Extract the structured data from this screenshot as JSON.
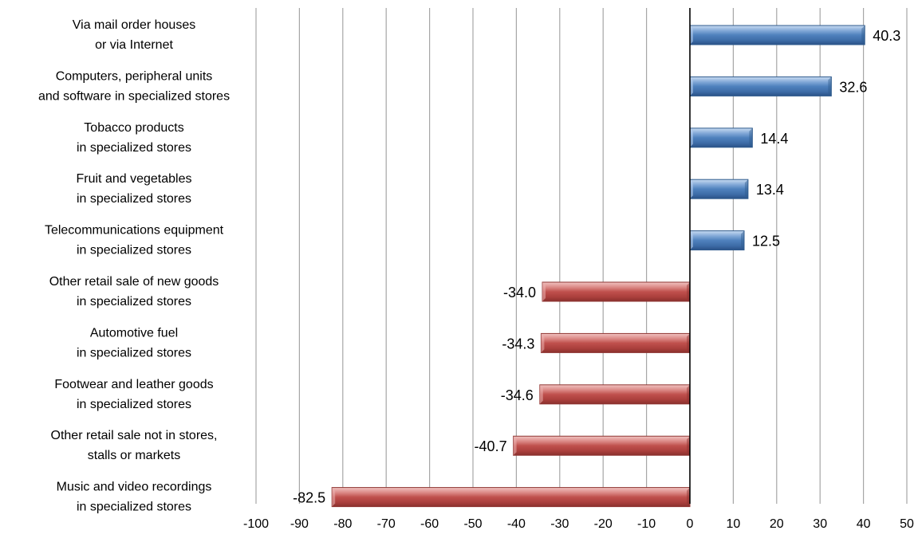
{
  "chart_data": {
    "type": "bar",
    "orientation": "horizontal",
    "categories": [
      [
        "Via mail order houses",
        "or via Internet"
      ],
      [
        "Computers, peripheral units",
        "and software in specialized stores"
      ],
      [
        "Tobacco products",
        "in specialized stores"
      ],
      [
        "Fruit and vegetables",
        "in specialized stores"
      ],
      [
        "Telecommunications equipment",
        "in specialized stores"
      ],
      [
        "Other retail sale of new goods",
        "in specialized stores"
      ],
      [
        "Automotive fuel",
        "in specialized stores"
      ],
      [
        "Footwear and leather goods",
        "in specialized stores"
      ],
      [
        "Other retail sale not in stores,",
        "stalls or markets"
      ],
      [
        "Music and video recordings",
        "in specialized stores"
      ]
    ],
    "values": [
      40.3,
      32.6,
      14.4,
      13.4,
      12.5,
      -34.0,
      -34.3,
      -34.6,
      -40.7,
      -82.5
    ],
    "value_labels": [
      "40.3",
      "32.6",
      "14.4",
      "13.4",
      "12.5",
      "-34.0",
      "-34.3",
      "-34.6",
      "-40.7",
      "-82.5"
    ],
    "xlim": [
      -100,
      50
    ],
    "xticks": [
      -100,
      -90,
      -80,
      -70,
      -60,
      -50,
      -40,
      -30,
      -20,
      -10,
      0,
      10,
      20,
      30,
      40,
      50
    ],
    "xtick_labels": [
      "-100",
      "-90",
      "-80",
      "-70",
      "-60",
      "-50",
      "-40",
      "-30",
      "-20",
      "-10",
      "0",
      "10",
      "20",
      "30",
      "40",
      "50"
    ],
    "grid": "vertical",
    "legend": "none",
    "title": "",
    "xlabel": "",
    "ylabel": "",
    "colors": {
      "positive": "#4F81BD",
      "positive_light": "#B8D0EE",
      "positive_dark": "#2E5A8C",
      "negative": "#C0504D",
      "negative_light": "#EBB3B1",
      "negative_dark": "#8E3431",
      "grid": "#A6A6A6",
      "zero_axis": "#000000"
    }
  }
}
